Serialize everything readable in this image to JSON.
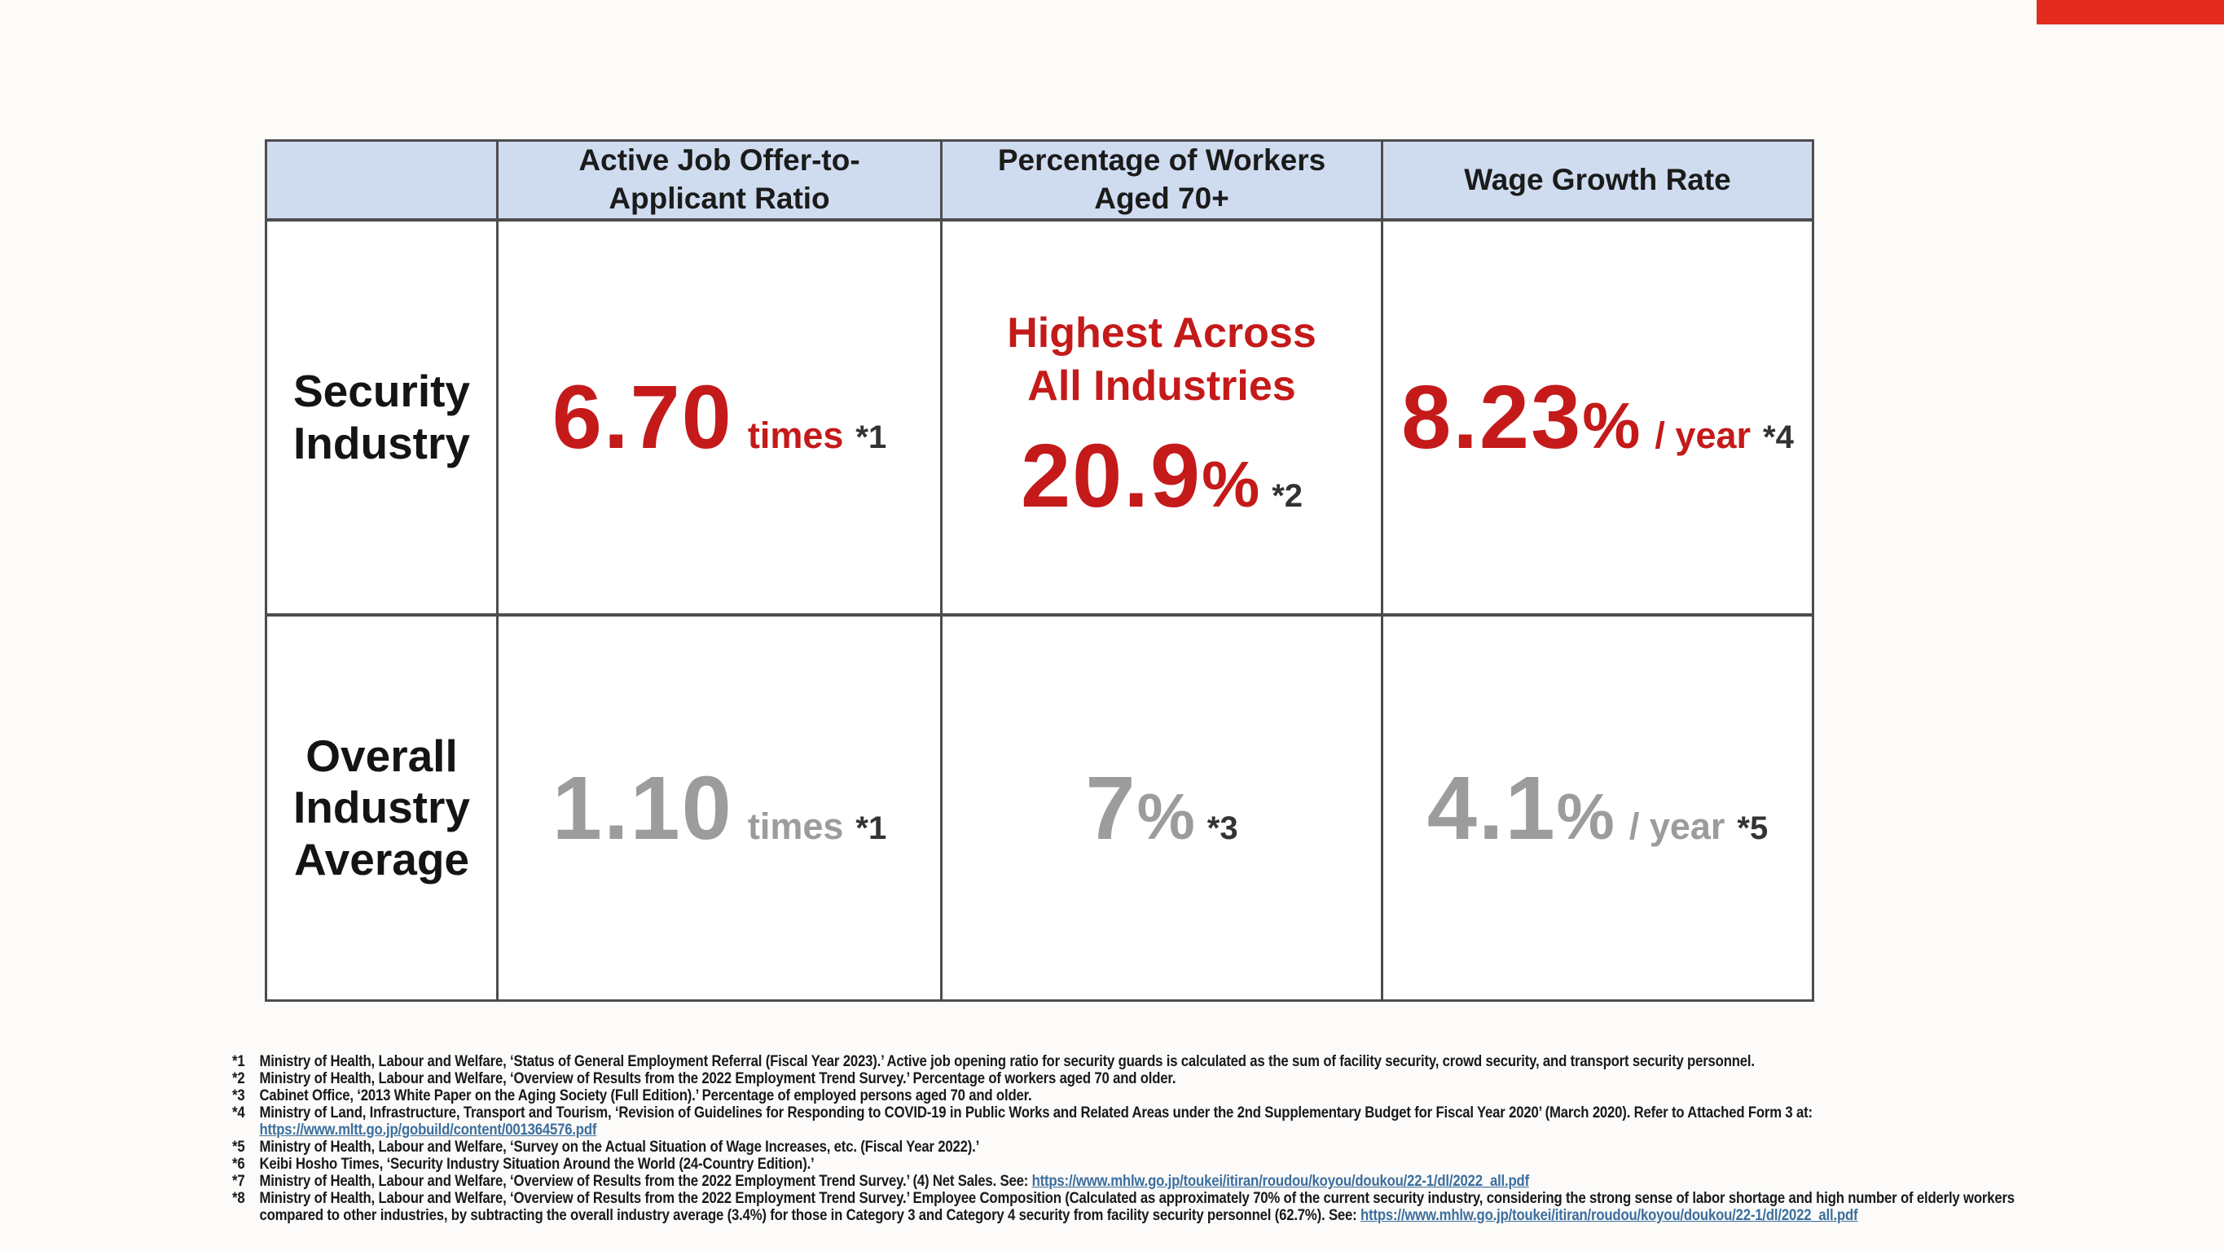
{
  "colors": {
    "red": "#c41a1a",
    "gray": "#9c9c9c",
    "blue": "#cfdcf0",
    "border": "#4d4d4d",
    "accent": "#e32b20",
    "link": "#3b6e9e"
  },
  "table": {
    "headers": {
      "col0": "",
      "col1": "Active Job Offer-to-\nApplicant Ratio",
      "col2": "Percentage of Workers\nAged 70+",
      "col3": "Wage Growth Rate"
    },
    "rows": [
      {
        "label": "Security\nIndustry",
        "ratio": {
          "value": "6.70",
          "unit": "times",
          "note": "*1"
        },
        "aged70": {
          "headline": "Highest Across\nAll Industries",
          "value": "20.9",
          "pct": "%",
          "note": "*2"
        },
        "wage": {
          "value": "8.23",
          "pct": "%",
          "unit": "/ year",
          "note": "*4"
        }
      },
      {
        "label": "Overall\nIndustry\nAverage",
        "ratio": {
          "value": "1.10",
          "unit": "times",
          "note": "*1"
        },
        "aged70": {
          "value": "7",
          "pct": "%",
          "note": "*3"
        },
        "wage": {
          "value": "4.1",
          "pct": "%",
          "unit": "/ year",
          "note": "*5"
        }
      }
    ]
  },
  "footnotes": {
    "f1": {
      "marker": "*1",
      "text": "Ministry of Health, Labour and Welfare, ‘Status of General Employment Referral (Fiscal Year 2023).’ Active job opening ratio for security guards is calculated as the sum of facility security, crowd security, and transport security personnel."
    },
    "f2": {
      "marker": "*2",
      "text": "Ministry of Health, Labour and Welfare, ‘Overview of Results from the 2022 Employment Trend Survey.’ Percentage of workers aged 70 and older."
    },
    "f3": {
      "marker": "*3",
      "text": "Cabinet Office, ‘2013 White Paper on the Aging Society (Full Edition).’ Percentage of employed persons aged 70 and older."
    },
    "f4": {
      "marker": "*4",
      "text": "Ministry of Land, Infrastructure, Transport and Tourism, ‘Revision of Guidelines for Responding to COVID-19 in Public Works and Related Areas under the 2nd Supplementary Budget for Fiscal Year 2020’ (March 2020). Refer to Attached Form 3 at:",
      "link": "https://www.mltt.go.jp/gobuild/content/001364576.pdf"
    },
    "f5": {
      "marker": "*5",
      "text": "Ministry of Health, Labour and Welfare, ‘Survey on the Actual Situation of Wage Increases, etc. (Fiscal Year 2022).’"
    },
    "f6": {
      "marker": "*6",
      "text": "Keibi Hosho Times, ‘Security Industry Situation Around the World (24-Country Edition).’"
    },
    "f7": {
      "marker": "*7",
      "text": "Ministry of Health, Labour and Welfare, ‘Overview of Results from the 2022 Employment Trend Survey.’ (4) Net Sales. See: ",
      "link": "https://www.mhlw.go.jp/toukei/itiran/roudou/koyou/doukou/22-1/dl/2022_all.pdf"
    },
    "f8": {
      "marker": "*8",
      "line1": "Ministry of Health, Labour and Welfare, ‘Overview of Results from the 2022 Employment Trend Survey.’ Employee Composition (Calculated as approximately 70% of the current security industry, considering the strong sense of labor shortage and high number of elderly workers",
      "line2": "compared to other industries, by subtracting the overall industry average (3.4%) for those in Category 3 and Category 4 security from facility security personnel (62.7%). See: ",
      "link": "https://www.mhlw.go.jp/toukei/itiran/roudou/koyou/doukou/22-1/dl/2022_all.pdf"
    }
  }
}
